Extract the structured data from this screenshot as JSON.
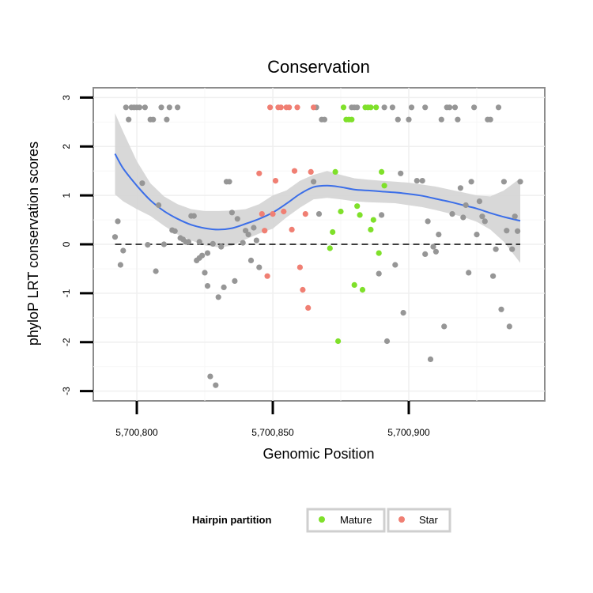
{
  "chart_data": {
    "type": "scatter",
    "title": "Conservation",
    "xlabel": "Genomic Position",
    "ylabel": "phyloP LRT conservation scores",
    "xlim": [
      5700784,
      5700950
    ],
    "ylim": [
      -3.2,
      3.2
    ],
    "x_ticks": [
      {
        "value": 5700800,
        "label": "5,700,800"
      },
      {
        "value": 5700850,
        "label": "5,700,850"
      },
      {
        "value": 5700900,
        "label": "5,700,900"
      }
    ],
    "y_ticks": [
      {
        "value": -3,
        "label": "-3"
      },
      {
        "value": -2,
        "label": "-2"
      },
      {
        "value": -1,
        "label": "-1"
      },
      {
        "value": 0,
        "label": "0"
      },
      {
        "value": 1,
        "label": "1"
      },
      {
        "value": 2,
        "label": "2"
      },
      {
        "value": 3,
        "label": "3"
      }
    ],
    "grid": true,
    "reference_line": {
      "y": 0,
      "style": "dashed"
    },
    "legend": {
      "title": "Hairpin partition",
      "placement": "bottom",
      "entries": [
        {
          "label": "Mature",
          "color": "#7fe02a"
        },
        {
          "label": "Star",
          "color": "#f07f73"
        }
      ]
    },
    "colors": {
      "other": "#969696",
      "mature": "#7fe02a",
      "star": "#f07f73",
      "smooth": "#3b6ee8",
      "band": "#d4d4d4"
    },
    "series": [
      {
        "group": "other",
        "points": [
          [
            5700792,
            0.15
          ],
          [
            5700793,
            0.47
          ],
          [
            5700794,
            -0.42
          ],
          [
            5700795,
            -0.13
          ],
          [
            5700796,
            2.8
          ],
          [
            5700797,
            2.55
          ],
          [
            5700798,
            2.8
          ],
          [
            5700799,
            2.8
          ],
          [
            5700800,
            2.8
          ],
          [
            5700801,
            2.8
          ],
          [
            5700802,
            1.25
          ],
          [
            5700803,
            2.8
          ],
          [
            5700804,
            -0.01
          ],
          [
            5700805,
            2.55
          ],
          [
            5700806,
            2.55
          ],
          [
            5700807,
            -0.55
          ],
          [
            5700808,
            0.8
          ],
          [
            5700809,
            2.8
          ],
          [
            5700810,
            0.0
          ],
          [
            5700811,
            2.55
          ],
          [
            5700812,
            2.8
          ],
          [
            5700813,
            0.29
          ],
          [
            5700814,
            0.27
          ],
          [
            5700815,
            2.8
          ],
          [
            5700816,
            0.13
          ],
          [
            5700817,
            0.1
          ],
          [
            5700818,
            0.05
          ],
          [
            5700819,
            0.05
          ],
          [
            5700820,
            0.58
          ],
          [
            5700821,
            0.58
          ],
          [
            5700822,
            -0.33
          ],
          [
            5700823,
            -0.28
          ],
          [
            5700823,
            0.05
          ],
          [
            5700824,
            -0.23
          ],
          [
            5700825,
            -0.58
          ],
          [
            5700826,
            -0.85
          ],
          [
            5700826,
            -0.18
          ],
          [
            5700827,
            -2.7
          ],
          [
            5700828,
            0.01
          ],
          [
            5700829,
            -2.88
          ],
          [
            5700830,
            -1.08
          ],
          [
            5700831,
            -0.05
          ],
          [
            5700832,
            -0.88
          ],
          [
            5700833,
            1.28
          ],
          [
            5700834,
            1.28
          ],
          [
            5700835,
            0.65
          ],
          [
            5700836,
            -0.75
          ],
          [
            5700837,
            0.52
          ],
          [
            5700839,
            0.03
          ],
          [
            5700840,
            0.28
          ],
          [
            5700841,
            0.2
          ],
          [
            5700842,
            -0.33
          ],
          [
            5700843,
            0.34
          ],
          [
            5700844,
            0.08
          ],
          [
            5700845,
            -0.47
          ],
          [
            5700865,
            1.28
          ],
          [
            5700866,
            2.8
          ],
          [
            5700867,
            0.62
          ],
          [
            5700868,
            2.55
          ],
          [
            5700869,
            2.55
          ],
          [
            5700879,
            2.8
          ],
          [
            5700880,
            2.8
          ],
          [
            5700881,
            2.8
          ],
          [
            5700889,
            -0.6
          ],
          [
            5700890,
            0.6
          ],
          [
            5700891,
            2.8
          ],
          [
            5700892,
            -1.98
          ],
          [
            5700894,
            2.8
          ],
          [
            5700895,
            -0.42
          ],
          [
            5700896,
            2.55
          ],
          [
            5700897,
            1.45
          ],
          [
            5700898,
            -1.4
          ],
          [
            5700900,
            2.55
          ],
          [
            5700901,
            2.8
          ],
          [
            5700903,
            1.3
          ],
          [
            5700905,
            1.3
          ],
          [
            5700906,
            -0.2
          ],
          [
            5700906,
            2.8
          ],
          [
            5700907,
            0.47
          ],
          [
            5700908,
            -2.35
          ],
          [
            5700909,
            -0.05
          ],
          [
            5700910,
            -0.15
          ],
          [
            5700911,
            0.2
          ],
          [
            5700912,
            2.55
          ],
          [
            5700913,
            -1.68
          ],
          [
            5700914,
            2.8
          ],
          [
            5700915,
            2.8
          ],
          [
            5700916,
            0.62
          ],
          [
            5700917,
            2.8
          ],
          [
            5700918,
            2.55
          ],
          [
            5700919,
            1.15
          ],
          [
            5700920,
            0.55
          ],
          [
            5700921,
            0.8
          ],
          [
            5700922,
            -0.58
          ],
          [
            5700923,
            1.28
          ],
          [
            5700924,
            2.8
          ],
          [
            5700925,
            0.2
          ],
          [
            5700926,
            0.88
          ],
          [
            5700927,
            0.57
          ],
          [
            5700928,
            0.47
          ],
          [
            5700929,
            2.55
          ],
          [
            5700930,
            2.55
          ],
          [
            5700931,
            -0.65
          ],
          [
            5700932,
            -0.1
          ],
          [
            5700933,
            2.8
          ],
          [
            5700934,
            -1.33
          ],
          [
            5700935,
            1.28
          ],
          [
            5700936,
            0.28
          ],
          [
            5700937,
            -1.68
          ],
          [
            5700938,
            -0.1
          ],
          [
            5700939,
            0.57
          ],
          [
            5700940,
            0.27
          ],
          [
            5700941,
            1.28
          ]
        ]
      },
      {
        "group": "mature",
        "name": "Mature",
        "points": [
          [
            5700871,
            -0.08
          ],
          [
            5700872,
            0.25
          ],
          [
            5700873,
            1.48
          ],
          [
            5700874,
            -1.98
          ],
          [
            5700875,
            0.67
          ],
          [
            5700876,
            2.8
          ],
          [
            5700877,
            2.55
          ],
          [
            5700878,
            2.55
          ],
          [
            5700879,
            2.55
          ],
          [
            5700880,
            -0.83
          ],
          [
            5700881,
            0.78
          ],
          [
            5700882,
            0.6
          ],
          [
            5700883,
            -0.93
          ],
          [
            5700884,
            2.8
          ],
          [
            5700885,
            2.8
          ],
          [
            5700886,
            2.8
          ],
          [
            5700886,
            0.3
          ],
          [
            5700887,
            0.5
          ],
          [
            5700888,
            2.8
          ],
          [
            5700889,
            -0.18
          ],
          [
            5700890,
            1.48
          ],
          [
            5700891,
            1.2
          ]
        ]
      },
      {
        "group": "star",
        "name": "Star",
        "points": [
          [
            5700845,
            1.45
          ],
          [
            5700846,
            0.62
          ],
          [
            5700847,
            0.28
          ],
          [
            5700848,
            -0.65
          ],
          [
            5700849,
            2.8
          ],
          [
            5700850,
            0.62
          ],
          [
            5700851,
            1.3
          ],
          [
            5700852,
            2.8
          ],
          [
            5700853,
            2.8
          ],
          [
            5700854,
            0.67
          ],
          [
            5700855,
            2.8
          ],
          [
            5700856,
            2.8
          ],
          [
            5700857,
            0.3
          ],
          [
            5700858,
            1.5
          ],
          [
            5700859,
            2.8
          ],
          [
            5700860,
            -0.47
          ],
          [
            5700861,
            -0.93
          ],
          [
            5700862,
            0.62
          ],
          [
            5700863,
            -1.3
          ],
          [
            5700864,
            1.48
          ],
          [
            5700865,
            2.8
          ]
        ]
      }
    ],
    "smooth_curve": [
      [
        5700792,
        1.85
      ],
      [
        5700795,
        1.55
      ],
      [
        5700800,
        1.2
      ],
      [
        5700805,
        0.9
      ],
      [
        5700810,
        0.68
      ],
      [
        5700815,
        0.52
      ],
      [
        5700820,
        0.4
      ],
      [
        5700825,
        0.33
      ],
      [
        5700830,
        0.3
      ],
      [
        5700835,
        0.33
      ],
      [
        5700840,
        0.42
      ],
      [
        5700845,
        0.52
      ],
      [
        5700850,
        0.65
      ],
      [
        5700855,
        0.83
      ],
      [
        5700860,
        1.03
      ],
      [
        5700865,
        1.17
      ],
      [
        5700870,
        1.2
      ],
      [
        5700875,
        1.17
      ],
      [
        5700880,
        1.12
      ],
      [
        5700885,
        1.1
      ],
      [
        5700890,
        1.08
      ],
      [
        5700895,
        1.06
      ],
      [
        5700900,
        1.03
      ],
      [
        5700905,
        0.99
      ],
      [
        5700910,
        0.93
      ],
      [
        5700915,
        0.87
      ],
      [
        5700920,
        0.8
      ],
      [
        5700925,
        0.73
      ],
      [
        5700930,
        0.64
      ],
      [
        5700935,
        0.56
      ],
      [
        5700941,
        0.48
      ]
    ],
    "ci_upper": [
      [
        5700792,
        2.68
      ],
      [
        5700795,
        2.3
      ],
      [
        5700800,
        1.7
      ],
      [
        5700805,
        1.25
      ],
      [
        5700810,
        0.98
      ],
      [
        5700815,
        0.82
      ],
      [
        5700820,
        0.72
      ],
      [
        5700825,
        0.68
      ],
      [
        5700830,
        0.68
      ],
      [
        5700835,
        0.69
      ],
      [
        5700840,
        0.72
      ],
      [
        5700845,
        0.82
      ],
      [
        5700850,
        1.0
      ],
      [
        5700855,
        1.1
      ],
      [
        5700860,
        1.3
      ],
      [
        5700865,
        1.42
      ],
      [
        5700870,
        1.5
      ],
      [
        5700875,
        1.42
      ],
      [
        5700880,
        1.35
      ],
      [
        5700885,
        1.32
      ],
      [
        5700890,
        1.3
      ],
      [
        5700895,
        1.28
      ],
      [
        5700900,
        1.26
      ],
      [
        5700905,
        1.22
      ],
      [
        5700910,
        1.18
      ],
      [
        5700915,
        1.12
      ],
      [
        5700920,
        1.06
      ],
      [
        5700925,
        1.0
      ],
      [
        5700930,
        0.98
      ],
      [
        5700935,
        1.1
      ],
      [
        5700941,
        1.35
      ]
    ],
    "ci_lower": [
      [
        5700792,
        1.02
      ],
      [
        5700795,
        0.88
      ],
      [
        5700800,
        0.72
      ],
      [
        5700805,
        0.58
      ],
      [
        5700810,
        0.38
      ],
      [
        5700815,
        0.2
      ],
      [
        5700820,
        0.08
      ],
      [
        5700825,
        -0.02
      ],
      [
        5700830,
        -0.06
      ],
      [
        5700835,
        -0.03
      ],
      [
        5700840,
        0.1
      ],
      [
        5700845,
        0.22
      ],
      [
        5700850,
        0.32
      ],
      [
        5700855,
        0.55
      ],
      [
        5700860,
        0.75
      ],
      [
        5700865,
        0.92
      ],
      [
        5700870,
        0.95
      ],
      [
        5700875,
        0.92
      ],
      [
        5700880,
        0.88
      ],
      [
        5700885,
        0.86
      ],
      [
        5700890,
        0.85
      ],
      [
        5700895,
        0.84
      ],
      [
        5700900,
        0.8
      ],
      [
        5700905,
        0.76
      ],
      [
        5700910,
        0.7
      ],
      [
        5700915,
        0.63
      ],
      [
        5700920,
        0.56
      ],
      [
        5700925,
        0.46
      ],
      [
        5700930,
        0.3
      ],
      [
        5700935,
        0.05
      ],
      [
        5700941,
        -0.38
      ]
    ]
  }
}
